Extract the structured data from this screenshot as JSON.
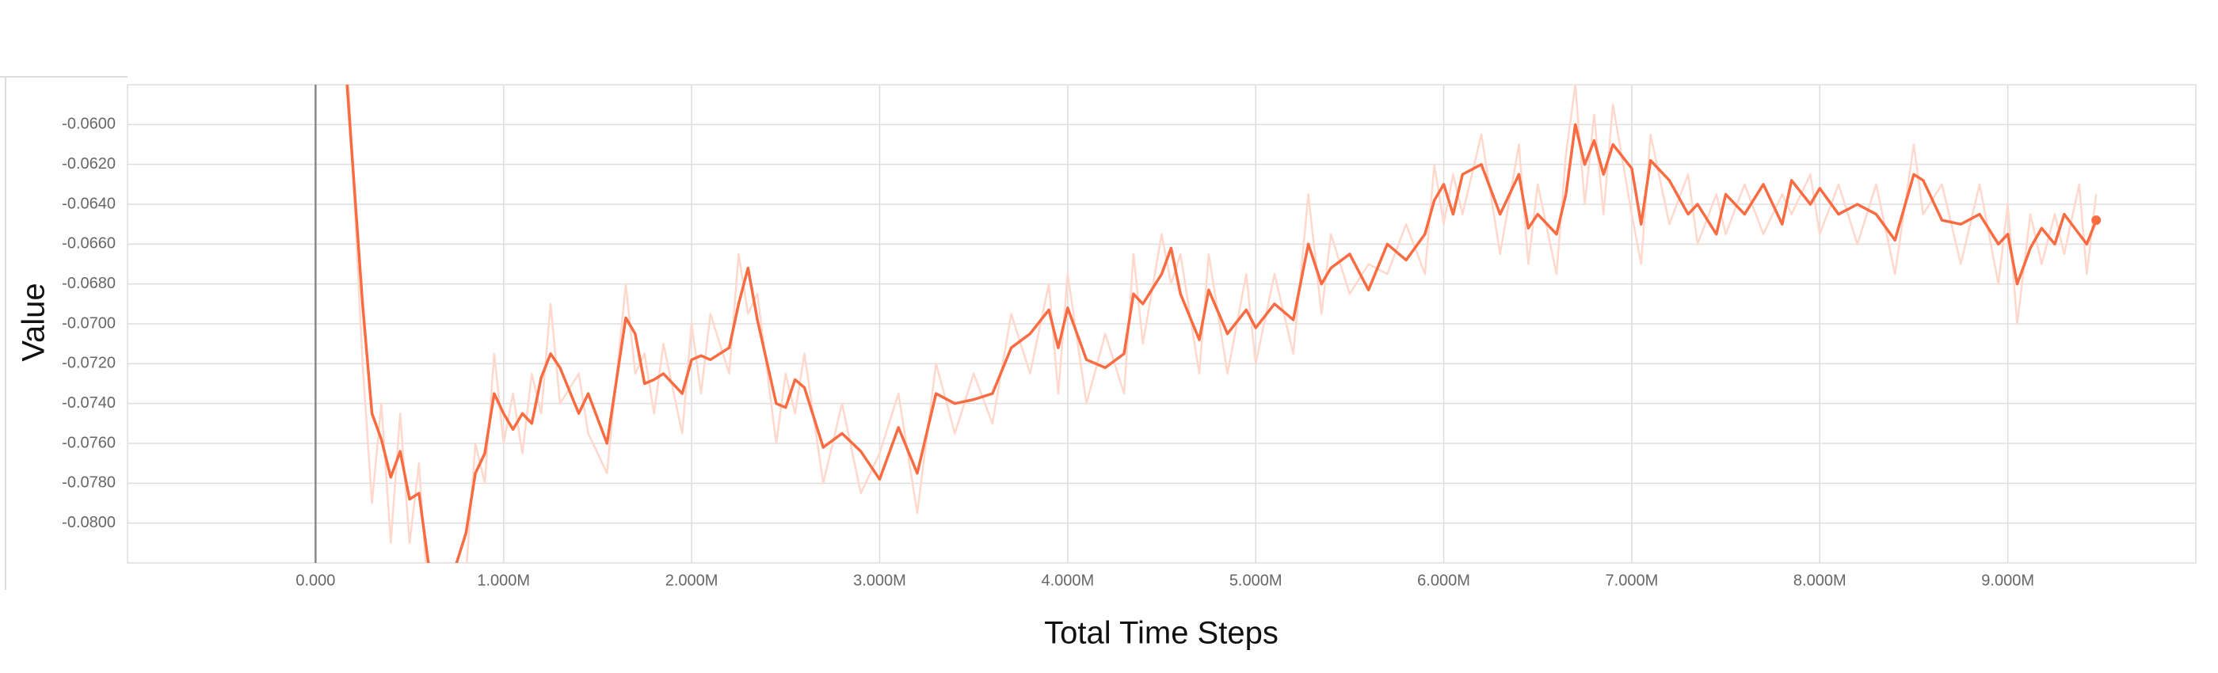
{
  "chart_data": {
    "type": "line",
    "x_label": "Total Time Steps",
    "y_label": "Value",
    "x": [
      160000,
      250000,
      300000,
      350000,
      400000,
      450000,
      500000,
      550000,
      600000,
      700000,
      800000,
      850000,
      900000,
      950000,
      1000000,
      1050000,
      1100000,
      1150000,
      1200000,
      1250000,
      1300000,
      1400000,
      1450000,
      1550000,
      1650000,
      1700000,
      1750000,
      1800000,
      1850000,
      1950000,
      2000000,
      2050000,
      2100000,
      2200000,
      2250000,
      2300000,
      2350000,
      2450000,
      2500000,
      2550000,
      2600000,
      2700000,
      2800000,
      2900000,
      3000000,
      3100000,
      3200000,
      3300000,
      3400000,
      3500000,
      3600000,
      3700000,
      3800000,
      3900000,
      3950000,
      4000000,
      4100000,
      4200000,
      4300000,
      4350000,
      4400000,
      4500000,
      4550000,
      4600000,
      4700000,
      4750000,
      4850000,
      4950000,
      5000000,
      5100000,
      5200000,
      5280000,
      5350000,
      5400000,
      5500000,
      5600000,
      5700000,
      5800000,
      5900000,
      5950000,
      6000000,
      6050000,
      6100000,
      6200000,
      6300000,
      6400000,
      6450000,
      6500000,
      6600000,
      6650000,
      6700000,
      6750000,
      6800000,
      6850000,
      6900000,
      7000000,
      7050000,
      7100000,
      7200000,
      7300000,
      7350000,
      7450000,
      7500000,
      7600000,
      7700000,
      7800000,
      7850000,
      7950000,
      8000000,
      8100000,
      8200000,
      8300000,
      8400000,
      8500000,
      8550000,
      8650000,
      8750000,
      8850000,
      8950000,
      9000000,
      9050000,
      9120000,
      9180000,
      9250000,
      9300000,
      9380000,
      9420000,
      9470000
    ],
    "series": [
      {
        "color": "#ffd8cc",
        "width": 2.5,
        "end_marker": false,
        "values": [
          -0.055,
          -0.072,
          -0.079,
          -0.074,
          -0.081,
          -0.0745,
          -0.081,
          -0.077,
          -0.084,
          -0.082,
          -0.0825,
          -0.076,
          -0.078,
          -0.0715,
          -0.076,
          -0.0735,
          -0.0765,
          -0.0725,
          -0.0745,
          -0.069,
          -0.074,
          -0.0725,
          -0.0755,
          -0.0775,
          -0.068,
          -0.0725,
          -0.0715,
          -0.0745,
          -0.071,
          -0.0755,
          -0.07,
          -0.0735,
          -0.0695,
          -0.0725,
          -0.0665,
          -0.0695,
          -0.0685,
          -0.076,
          -0.0725,
          -0.0745,
          -0.0715,
          -0.078,
          -0.074,
          -0.0785,
          -0.0765,
          -0.0735,
          -0.0795,
          -0.072,
          -0.0755,
          -0.0725,
          -0.075,
          -0.0695,
          -0.0725,
          -0.068,
          -0.0735,
          -0.0675,
          -0.074,
          -0.0705,
          -0.0735,
          -0.0665,
          -0.071,
          -0.0655,
          -0.068,
          -0.0665,
          -0.0725,
          -0.0665,
          -0.0725,
          -0.0675,
          -0.072,
          -0.0675,
          -0.0715,
          -0.0635,
          -0.0695,
          -0.0655,
          -0.0685,
          -0.067,
          -0.0675,
          -0.065,
          -0.0675,
          -0.062,
          -0.065,
          -0.0625,
          -0.0645,
          -0.0605,
          -0.0665,
          -0.061,
          -0.067,
          -0.063,
          -0.0675,
          -0.0615,
          -0.058,
          -0.064,
          -0.0595,
          -0.0645,
          -0.059,
          -0.0645,
          -0.067,
          -0.0605,
          -0.065,
          -0.0625,
          -0.066,
          -0.0635,
          -0.0655,
          -0.063,
          -0.0655,
          -0.0635,
          -0.0645,
          -0.0625,
          -0.0655,
          -0.063,
          -0.066,
          -0.063,
          -0.0675,
          -0.061,
          -0.0645,
          -0.063,
          -0.067,
          -0.063,
          -0.068,
          -0.064,
          -0.07,
          -0.0645,
          -0.067,
          -0.0645,
          -0.0665,
          -0.063,
          -0.0675,
          -0.0635
        ]
      },
      {
        "color": "#f96b41",
        "width": 3.5,
        "end_marker": true,
        "values": [
          -0.057,
          -0.069,
          -0.0745,
          -0.0758,
          -0.0777,
          -0.0764,
          -0.0788,
          -0.0785,
          -0.082,
          -0.0835,
          -0.0805,
          -0.0775,
          -0.0765,
          -0.0735,
          -0.0745,
          -0.0753,
          -0.0745,
          -0.075,
          -0.0727,
          -0.0715,
          -0.0722,
          -0.0745,
          -0.0735,
          -0.076,
          -0.0697,
          -0.0705,
          -0.073,
          -0.0728,
          -0.0725,
          -0.0735,
          -0.0718,
          -0.0716,
          -0.0718,
          -0.0712,
          -0.069,
          -0.0672,
          -0.0698,
          -0.074,
          -0.0742,
          -0.0728,
          -0.0732,
          -0.0762,
          -0.0755,
          -0.0764,
          -0.0778,
          -0.0752,
          -0.0775,
          -0.0735,
          -0.074,
          -0.0738,
          -0.0735,
          -0.0712,
          -0.0705,
          -0.0693,
          -0.0712,
          -0.0692,
          -0.0718,
          -0.0722,
          -0.0715,
          -0.0685,
          -0.069,
          -0.0675,
          -0.0662,
          -0.0685,
          -0.0708,
          -0.0683,
          -0.0705,
          -0.0693,
          -0.0702,
          -0.069,
          -0.0698,
          -0.066,
          -0.068,
          -0.0672,
          -0.0665,
          -0.0683,
          -0.066,
          -0.0668,
          -0.0655,
          -0.0638,
          -0.063,
          -0.0645,
          -0.0625,
          -0.062,
          -0.0645,
          -0.0625,
          -0.0652,
          -0.0645,
          -0.0655,
          -0.0635,
          -0.06,
          -0.062,
          -0.0608,
          -0.0625,
          -0.061,
          -0.0622,
          -0.065,
          -0.0618,
          -0.0628,
          -0.0645,
          -0.064,
          -0.0655,
          -0.0635,
          -0.0645,
          -0.063,
          -0.065,
          -0.0628,
          -0.064,
          -0.0632,
          -0.0645,
          -0.064,
          -0.0645,
          -0.0658,
          -0.0625,
          -0.0628,
          -0.0648,
          -0.065,
          -0.0645,
          -0.066,
          -0.0655,
          -0.068,
          -0.0662,
          -0.0652,
          -0.066,
          -0.0645,
          -0.0655,
          -0.066,
          -0.0648
        ]
      }
    ],
    "xlim": [
      -1000000,
      10000000
    ],
    "ylim": [
      -0.082,
      -0.058
    ],
    "xticks": [
      {
        "value": 0,
        "label": "0.000"
      },
      {
        "value": 1000000,
        "label": "1.000M"
      },
      {
        "value": 2000000,
        "label": "2.000M"
      },
      {
        "value": 3000000,
        "label": "3.000M"
      },
      {
        "value": 4000000,
        "label": "4.000M"
      },
      {
        "value": 5000000,
        "label": "5.000M"
      },
      {
        "value": 6000000,
        "label": "6.000M"
      },
      {
        "value": 7000000,
        "label": "7.000M"
      },
      {
        "value": 8000000,
        "label": "8.000M"
      },
      {
        "value": 9000000,
        "label": "9.000M"
      }
    ],
    "yticks": [
      {
        "value": -0.06,
        "label": "-0.0600"
      },
      {
        "value": -0.062,
        "label": "-0.0620"
      },
      {
        "value": -0.064,
        "label": "-0.0640"
      },
      {
        "value": -0.066,
        "label": "-0.0660"
      },
      {
        "value": -0.068,
        "label": "-0.0680"
      },
      {
        "value": -0.07,
        "label": "-0.0700"
      },
      {
        "value": -0.072,
        "label": "-0.0720"
      },
      {
        "value": -0.074,
        "label": "-0.0740"
      },
      {
        "value": -0.076,
        "label": "-0.0760"
      },
      {
        "value": -0.078,
        "label": "-0.0780"
      },
      {
        "value": -0.08,
        "label": "-0.0800"
      }
    ],
    "grid": true
  }
}
